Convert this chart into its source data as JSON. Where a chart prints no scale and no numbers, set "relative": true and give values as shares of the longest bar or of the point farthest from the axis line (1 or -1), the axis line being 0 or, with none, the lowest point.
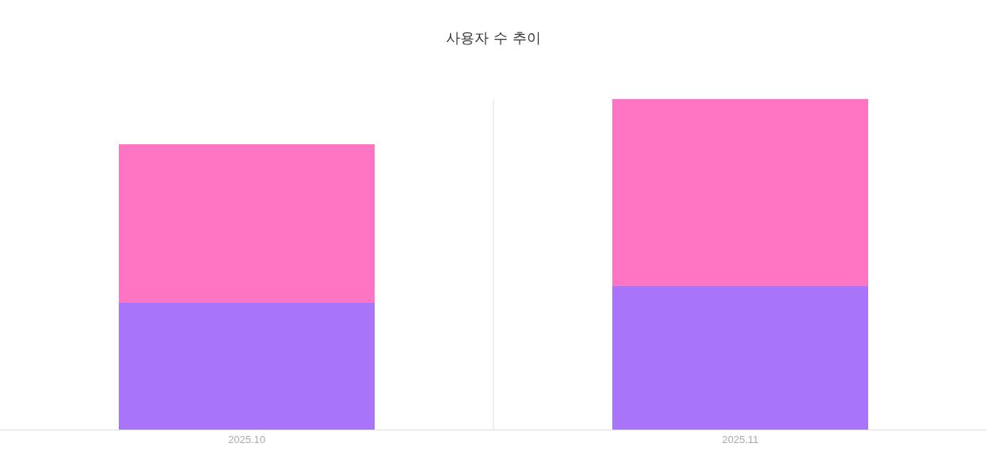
{
  "chart_data": {
    "type": "bar",
    "title": "사용자 수 추이",
    "categories": [
      "2025.10",
      "2025.11"
    ],
    "stacked": true,
    "relative": true,
    "series": [
      {
        "color": "#a874f9",
        "values": [
          0.384,
          0.434
        ]
      },
      {
        "color": "#ff75c3",
        "values": [
          0.48,
          0.566
        ]
      }
    ]
  }
}
